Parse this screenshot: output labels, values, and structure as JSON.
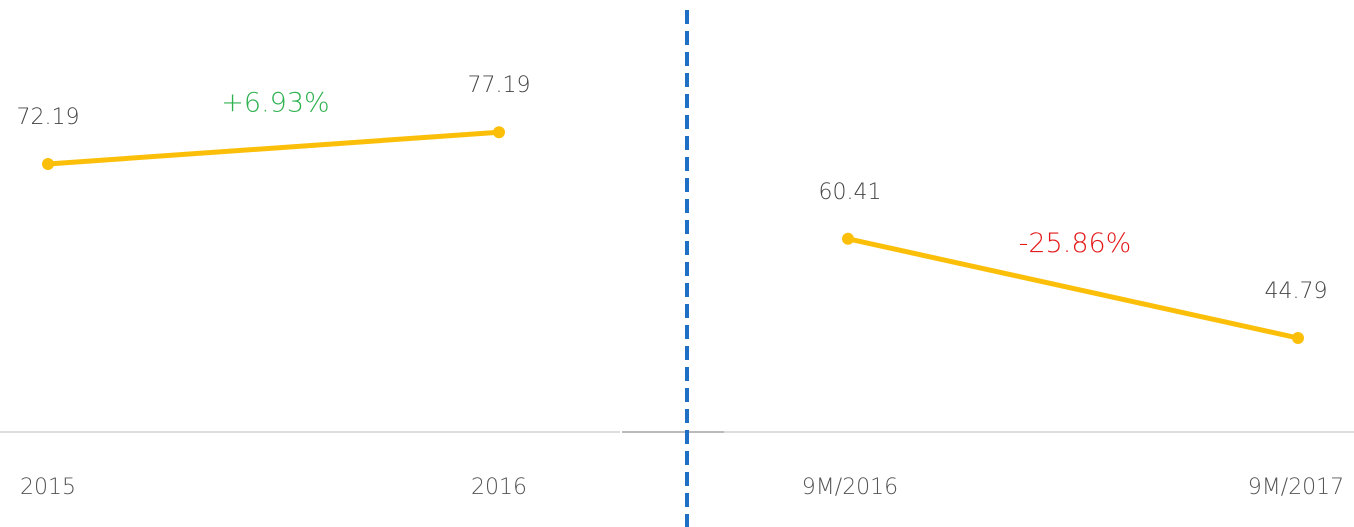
{
  "chart_data": [
    {
      "type": "line",
      "categories": [
        "2015",
        "2016"
      ],
      "values": [
        72.19,
        77.19
      ],
      "color": "#fbbf0a",
      "annotation": "+6.93%",
      "annotation_color": "#2db14e",
      "ylim": [
        30,
        98
      ]
    },
    {
      "type": "line",
      "categories": [
        "9M/2016",
        "9M/2017"
      ],
      "values": [
        60.41,
        44.79
      ],
      "color": "#fbbf0a",
      "annotation": "-25.86%",
      "annotation_color": "#e41a1a",
      "ylim": [
        30,
        98
      ]
    }
  ]
}
